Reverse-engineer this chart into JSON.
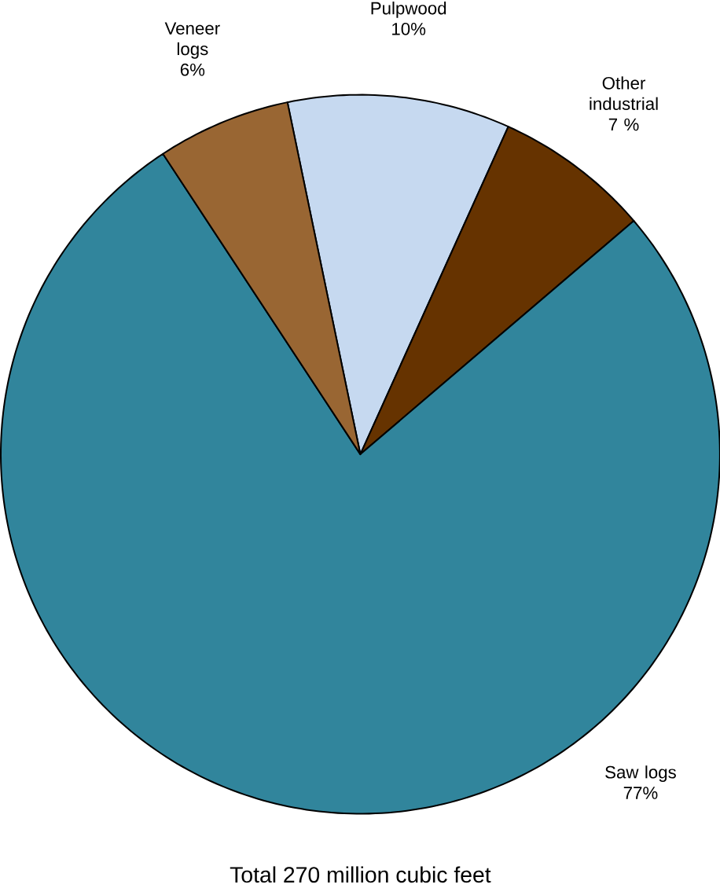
{
  "chart_data": {
    "type": "pie",
    "categories": [
      "Pulpwood",
      "Other industrial",
      "Saw logs",
      "Veneer logs"
    ],
    "values": [
      10,
      7,
      77,
      6
    ],
    "value_labels": [
      "10%",
      "7 %",
      "77%",
      "6%"
    ],
    "colors": [
      "#c6d9f0",
      "#663300",
      "#31859c",
      "#996633"
    ],
    "annotations": [
      "Total 270 million cubic feet"
    ]
  }
}
